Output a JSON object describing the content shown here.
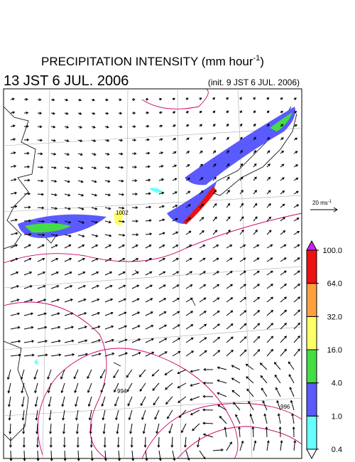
{
  "header": {
    "title": "PRECIPITATION INTENSITY (mm hour",
    "title_exponent": "-1",
    "title_close": ")",
    "valid_time": "13 JST 6 JUL. 2006",
    "init_time": "(init. 9 JST 6 JUL. 2006)"
  },
  "wind_legend": {
    "label": "20 ms",
    "exponent": "-1"
  },
  "contour_labels": [
    "1002",
    "994",
    "996"
  ],
  "colorbar": {
    "ticks": [
      {
        "value": 0.4,
        "label": "0.4"
      },
      {
        "value": 1,
        "label": "1.0"
      },
      {
        "value": 4,
        "label": "4.0"
      },
      {
        "value": 16,
        "label": "16.0"
      },
      {
        "value": 32,
        "label": "32.0"
      },
      {
        "value": 64,
        "label": "64.0"
      },
      {
        "value": 100,
        "label": "100.0"
      }
    ],
    "colors": [
      "#66ffff",
      "#5a5aff",
      "#44dd44",
      "#ffff66",
      "#ffa040",
      "#ee1111"
    ],
    "under_color": "#ffffff",
    "over_color": "#cc22ff"
  }
}
